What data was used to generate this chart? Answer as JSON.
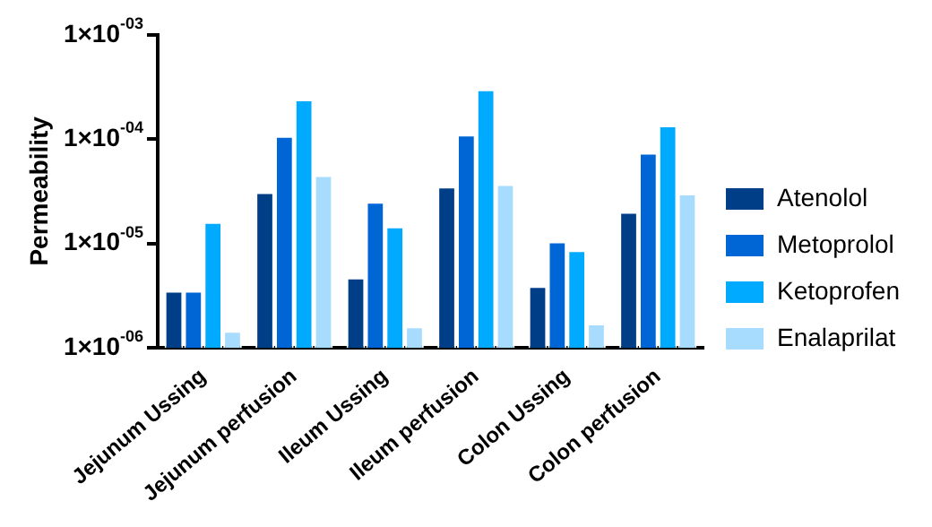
{
  "chart_data": {
    "type": "bar",
    "ylabel": "Permeability",
    "log": "y",
    "legend": "right",
    "grid": false,
    "categories": [
      "Jejunum Ussing",
      "Jejunum perfusion",
      "Ileum Ussing",
      "Ileum perfusion",
      "Colon Ussing",
      "Colon perfusion"
    ],
    "ylim": [
      1e-06,
      0.001
    ],
    "yticks": [
      {
        "value": 1e-06,
        "label": "1×10$^{-06}$"
      },
      {
        "value": 1e-05,
        "label": "1×10$^{-05}$"
      },
      {
        "value": 0.0001,
        "label": "1×10$^{-04}$"
      },
      {
        "value": 0.001,
        "label": "1×10$^{-03}$"
      }
    ],
    "series": [
      {
        "name": "Atenolol",
        "color": "#003f87",
        "values": [
          3.5e-06,
          3.1e-05,
          4.7e-06,
          3.5e-05,
          3.9e-06,
          2e-05
        ]
      },
      {
        "name": "Metoprolol",
        "color": "#0066d6",
        "values": [
          3.5e-06,
          0.000107,
          2.5e-05,
          0.00011,
          1.04e-05,
          7.4e-05
        ]
      },
      {
        "name": "Ketoprofen",
        "color": "#00aaff",
        "values": [
          1.6e-05,
          0.00024,
          1.45e-05,
          0.0003,
          8.6e-06,
          0.000135
        ]
      },
      {
        "name": "Enalaprilat",
        "color": "#a8dcff",
        "values": [
          1.45e-06,
          4.5e-05,
          1.6e-06,
          3.7e-05,
          1.7e-06,
          3e-05
        ]
      }
    ]
  }
}
